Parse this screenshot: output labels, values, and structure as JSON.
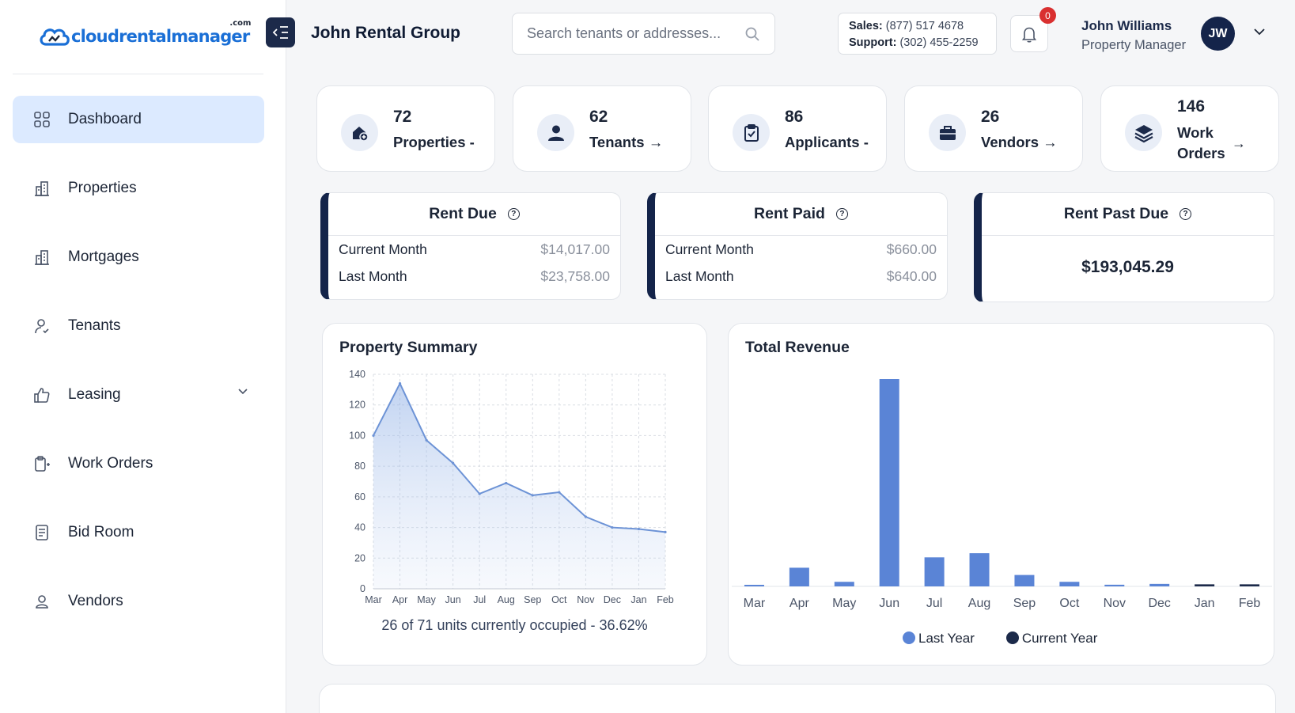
{
  "brand": {
    "logo_main": "cloud",
    "logo_rest": "rentalmanager",
    "logo_sup": ".com"
  },
  "sidebar": {
    "items": [
      {
        "label": "Dashboard",
        "icon": "grid-icon",
        "active": true
      },
      {
        "label": "Properties",
        "icon": "buildings-icon"
      },
      {
        "label": "Mortgages",
        "icon": "buildings-icon"
      },
      {
        "label": "Tenants",
        "icon": "user-check-icon"
      },
      {
        "label": "Leasing",
        "icon": "thumbs-up-icon",
        "expandable": true
      },
      {
        "label": "Work Orders",
        "icon": "clipboard-icon"
      },
      {
        "label": "Bid Room",
        "icon": "document-icon"
      },
      {
        "label": "Vendors",
        "icon": "user-icon"
      }
    ]
  },
  "header": {
    "company": "John Rental Group",
    "search_placeholder": "Search tenants or addresses...",
    "sales_label": "Sales:",
    "sales_phone": "(877) 517 4678",
    "support_label": "Support:",
    "support_phone": "(302) 455-2259",
    "notification_count": "0",
    "user_name": "John Williams",
    "user_role": "Property Manager",
    "user_initials": "JW"
  },
  "stats": [
    {
      "value": "72",
      "label": "Properties -",
      "icon": "home-plus-icon"
    },
    {
      "value": "62",
      "label": "Tenants →",
      "icon": "person-icon"
    },
    {
      "value": "86",
      "label": "Applicants -",
      "icon": "clipboard-check-icon"
    },
    {
      "value": "26",
      "label": "Vendors →",
      "icon": "briefcase-icon"
    },
    {
      "value": "146",
      "label": "Work Orders",
      "arrow": "→",
      "icon": "layers-icon"
    }
  ],
  "rent": {
    "due": {
      "title": "Rent Due",
      "rows": [
        {
          "label": "Current Month",
          "value": "$14,017.00"
        },
        {
          "label": "Last Month",
          "value": "$23,758.00"
        }
      ]
    },
    "paid": {
      "title": "Rent Paid",
      "rows": [
        {
          "label": "Current Month",
          "value": "$660.00"
        },
        {
          "label": "Last Month",
          "value": "$640.00"
        }
      ]
    },
    "past_due": {
      "title": "Rent Past Due",
      "value": "$193,045.29"
    }
  },
  "chart_data": [
    {
      "type": "area",
      "title": "Property Summary",
      "categories": [
        "Mar",
        "Apr",
        "May",
        "Jun",
        "Jul",
        "Aug",
        "Sep",
        "Oct",
        "Nov",
        "Dec",
        "Jan",
        "Feb"
      ],
      "values": [
        100,
        134,
        97,
        82,
        62,
        69,
        61,
        63,
        47,
        40,
        39,
        37
      ],
      "ylim": [
        0,
        140
      ],
      "yticks": [
        0,
        20,
        40,
        60,
        80,
        100,
        120,
        140
      ],
      "grid": true,
      "color": "#6d93d6",
      "caption": "26 of 71 units currently occupied - 36.62%"
    },
    {
      "type": "bar",
      "title": "Total Revenue",
      "categories": [
        "Mar",
        "Apr",
        "May",
        "Jun",
        "Jul",
        "Aug",
        "Sep",
        "Oct",
        "Nov",
        "Dec",
        "Jan",
        "Feb"
      ],
      "ylim": [
        0,
        100
      ],
      "series": [
        {
          "name": "Last Year",
          "color": "#5a84d6",
          "values": [
            0.3,
            9,
            2.2,
            100,
            14,
            16,
            5.5,
            2.2,
            0.8,
            1.2,
            0,
            0
          ]
        },
        {
          "name": "Current Year",
          "color": "#1c2a4a",
          "values": [
            0,
            0,
            0,
            0,
            0,
            0,
            0,
            0,
            0,
            0,
            1,
            1
          ]
        }
      ],
      "legend": "bottom"
    }
  ]
}
